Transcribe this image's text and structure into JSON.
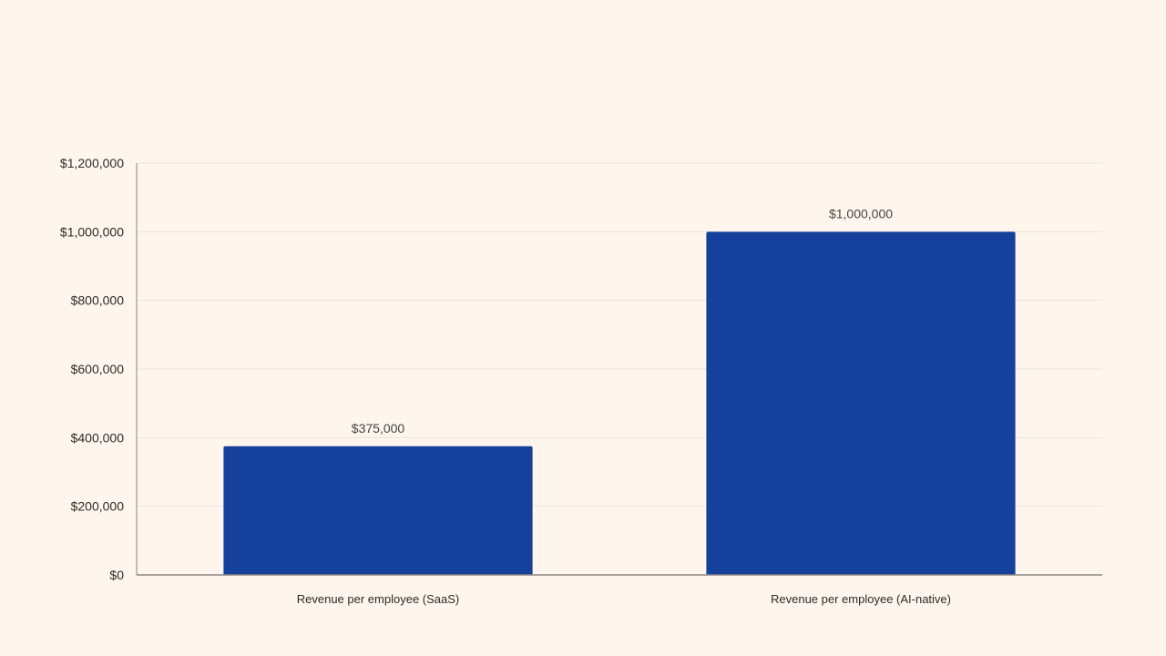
{
  "colors": {
    "background": "#FEF5EC",
    "bar": "#15409B",
    "gridline": "#EDE4DB",
    "axis": "#8A8480"
  },
  "chart_data": {
    "type": "bar",
    "categories": [
      "Revenue per employee (SaaS)",
      "Revenue per employee (AI-native)"
    ],
    "values": [
      375000,
      1000000
    ],
    "data_labels": [
      "$375,000",
      "$1,000,000"
    ],
    "title": "",
    "xlabel": "",
    "ylabel": "",
    "ylim": [
      0,
      1200000
    ],
    "yticks": [
      0,
      200000,
      400000,
      600000,
      800000,
      1000000,
      1200000
    ],
    "ytick_labels": [
      "$0",
      "$200,000",
      "$400,000",
      "$600,000",
      "$800,000",
      "$1,000,000",
      "$1,200,000"
    ],
    "grid": true,
    "legend": "none"
  }
}
